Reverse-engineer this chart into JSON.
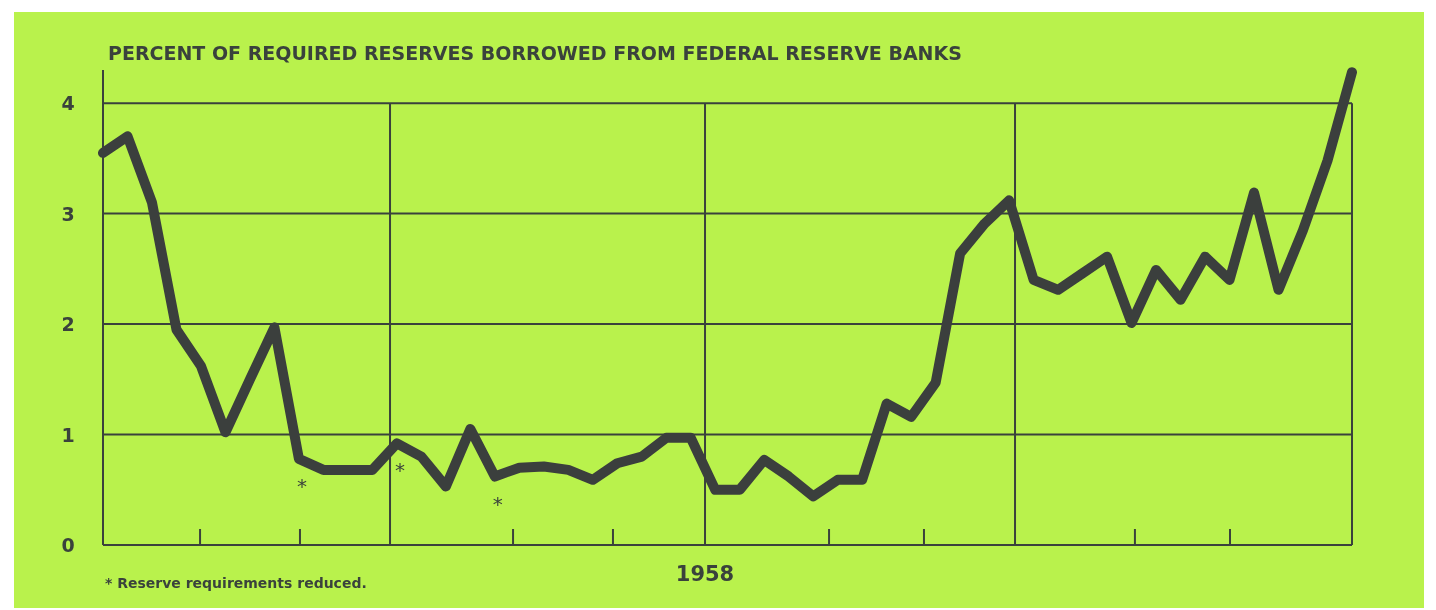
{
  "chart_data": {
    "type": "line",
    "title": "PERCENT OF REQUIRED RESERVES BORROWED FROM FEDERAL RESERVE BANKS",
    "categories": [
      null,
      null,
      null,
      null,
      null,
      null,
      null,
      null,
      null,
      null,
      null,
      null,
      null,
      null,
      null,
      null,
      null,
      null,
      null,
      null,
      null,
      null,
      null,
      null,
      null,
      null,
      null,
      null,
      null,
      null,
      null,
      null,
      null,
      null,
      null,
      null,
      null,
      null,
      null,
      null,
      null,
      null,
      null,
      null,
      null,
      null,
      null,
      null,
      null,
      null,
      null,
      null
    ],
    "series": [
      {
        "color": "#3b3f3d",
        "values": [
          3.55,
          3.7,
          3.1,
          1.95,
          1.62,
          1.02,
          1.5,
          1.97,
          0.78,
          0.68,
          0.68,
          0.68,
          0.92,
          0.8,
          0.53,
          1.05,
          0.62,
          0.7,
          0.71,
          0.68,
          0.59,
          0.74,
          0.8,
          0.97,
          0.97,
          0.5,
          0.5,
          0.77,
          0.62,
          0.44,
          0.59,
          0.59,
          1.28,
          1.16,
          1.47,
          2.64,
          2.91,
          3.12,
          2.4,
          2.31,
          2.46,
          2.61,
          2.01,
          2.49,
          2.22,
          2.61,
          2.4,
          3.19,
          2.31,
          2.85,
          3.48,
          4.28
        ],
        "value_labels": [
          null,
          null,
          null,
          null,
          null,
          null,
          null,
          null,
          "*",
          null,
          null,
          null,
          "*",
          null,
          null,
          null,
          "*",
          null,
          null,
          null,
          null,
          null,
          null,
          null,
          null,
          null,
          null,
          null,
          null,
          null,
          null,
          null,
          null,
          null,
          null,
          null,
          null,
          null,
          null,
          null,
          null,
          null,
          null,
          null,
          null,
          null,
          null,
          null,
          null,
          null,
          null,
          null
        ]
      }
    ],
    "xlabel": "1958",
    "ylim": [
      0,
      4.3
    ],
    "yticks": [
      0,
      1,
      2,
      3,
      4
    ],
    "grid": true,
    "marker": "none",
    "line_style": "solid",
    "annotations": [
      "* Reserve requirements reduced."
    ]
  }
}
